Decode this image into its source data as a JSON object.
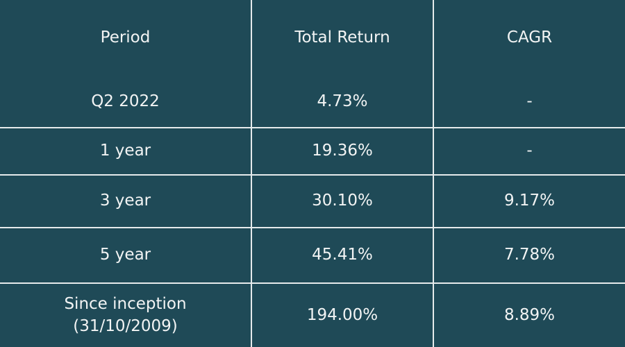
{
  "table": {
    "header": [
      "Period",
      "Total Return",
      "CAGR"
    ],
    "rows": [
      [
        "Q2 2022",
        "4.73%",
        "-"
      ],
      [
        "1 year",
        "19.36%",
        "-"
      ],
      [
        "3 year",
        "30.10%",
        "9.17%"
      ],
      [
        "5 year",
        "45.41%",
        "7.78%"
      ],
      [
        "Since inception\n(31/10/2009)",
        "194.00%",
        "8.89%"
      ]
    ]
  }
}
